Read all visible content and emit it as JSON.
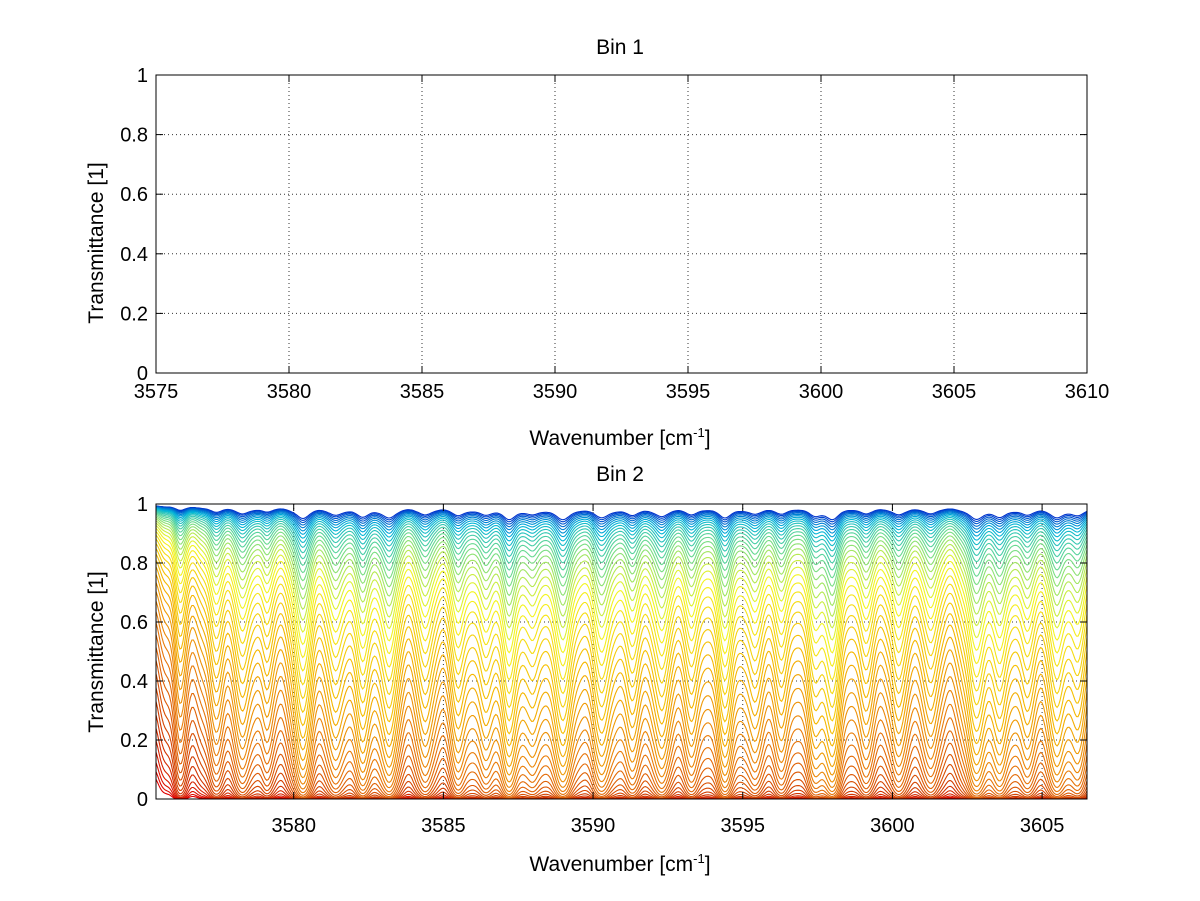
{
  "chart_data": [
    {
      "type": "line",
      "title": "Bin 1",
      "xlabel": "Wavenumber [cm",
      "xlabel_sup": "-1",
      "xlabel_end": "]",
      "ylabel": "Transmittance [1]",
      "xlim": [
        3575,
        3610
      ],
      "ylim": [
        0,
        1
      ],
      "xticks": [
        "3575",
        "3580",
        "3585",
        "3590",
        "3595",
        "3600",
        "3605",
        "3610"
      ],
      "yticks": [
        "0",
        "0.2",
        "0.4",
        "0.6",
        "0.8",
        "1"
      ],
      "grid": true,
      "series": []
    },
    {
      "type": "line",
      "title": "Bin 2",
      "xlabel": "Wavenumber [cm",
      "xlabel_sup": "-1",
      "xlabel_end": "]",
      "ylabel": "Transmittance [1]",
      "xlim": [
        3575.4,
        3606.5
      ],
      "ylim": [
        0,
        1
      ],
      "xticks": [
        "3580",
        "3585",
        "3590",
        "3595",
        "3600",
        "3605"
      ],
      "yticks": [
        "0",
        "0.2",
        "0.4",
        "0.6",
        "0.8",
        "1"
      ],
      "grid": true,
      "curve_count": 48,
      "colormap": [
        "#0033cc",
        "#00b4d8",
        "#6fdc8c",
        "#f5f520",
        "#f5b800",
        "#e8780a",
        "#d03a00",
        "#e00000"
      ],
      "absorption_lines": [
        {
          "x": 3576.2,
          "depth": 0.35,
          "width": 0.25
        },
        {
          "x": 3577.4,
          "depth": 0.45,
          "width": 0.3
        },
        {
          "x": 3578.3,
          "depth": 0.55,
          "width": 0.3
        },
        {
          "x": 3579.1,
          "depth": 0.4,
          "width": 0.25
        },
        {
          "x": 3580.3,
          "depth": 0.95,
          "width": 0.3
        },
        {
          "x": 3581.4,
          "depth": 0.6,
          "width": 0.3
        },
        {
          "x": 3582.3,
          "depth": 0.75,
          "width": 0.3
        },
        {
          "x": 3583.2,
          "depth": 0.85,
          "width": 0.3
        },
        {
          "x": 3584.4,
          "depth": 0.6,
          "width": 0.3
        },
        {
          "x": 3585.5,
          "depth": 0.65,
          "width": 0.3
        },
        {
          "x": 3586.4,
          "depth": 0.55,
          "width": 0.3
        },
        {
          "x": 3587.2,
          "depth": 0.9,
          "width": 0.3
        },
        {
          "x": 3588.0,
          "depth": 0.5,
          "width": 0.3
        },
        {
          "x": 3589.0,
          "depth": 0.95,
          "width": 0.35
        },
        {
          "x": 3590.3,
          "depth": 0.8,
          "width": 0.35
        },
        {
          "x": 3591.3,
          "depth": 0.6,
          "width": 0.3
        },
        {
          "x": 3592.3,
          "depth": 0.75,
          "width": 0.3
        },
        {
          "x": 3593.3,
          "depth": 0.55,
          "width": 0.3
        },
        {
          "x": 3594.4,
          "depth": 0.85,
          "width": 0.3
        },
        {
          "x": 3595.4,
          "depth": 0.55,
          "width": 0.3
        },
        {
          "x": 3596.3,
          "depth": 0.5,
          "width": 0.3
        },
        {
          "x": 3597.4,
          "depth": 0.6,
          "width": 0.3
        },
        {
          "x": 3598.0,
          "depth": 0.9,
          "width": 0.3
        },
        {
          "x": 3599.1,
          "depth": 0.5,
          "width": 0.3
        },
        {
          "x": 3600.2,
          "depth": 0.65,
          "width": 0.3
        },
        {
          "x": 3601.3,
          "depth": 0.55,
          "width": 0.3
        },
        {
          "x": 3602.8,
          "depth": 0.95,
          "width": 0.35
        },
        {
          "x": 3603.6,
          "depth": 0.7,
          "width": 0.3
        },
        {
          "x": 3604.5,
          "depth": 0.6,
          "width": 0.3
        },
        {
          "x": 3605.5,
          "depth": 0.8,
          "width": 0.3
        },
        {
          "x": 3606.2,
          "depth": 0.7,
          "width": 0.3
        }
      ]
    }
  ]
}
